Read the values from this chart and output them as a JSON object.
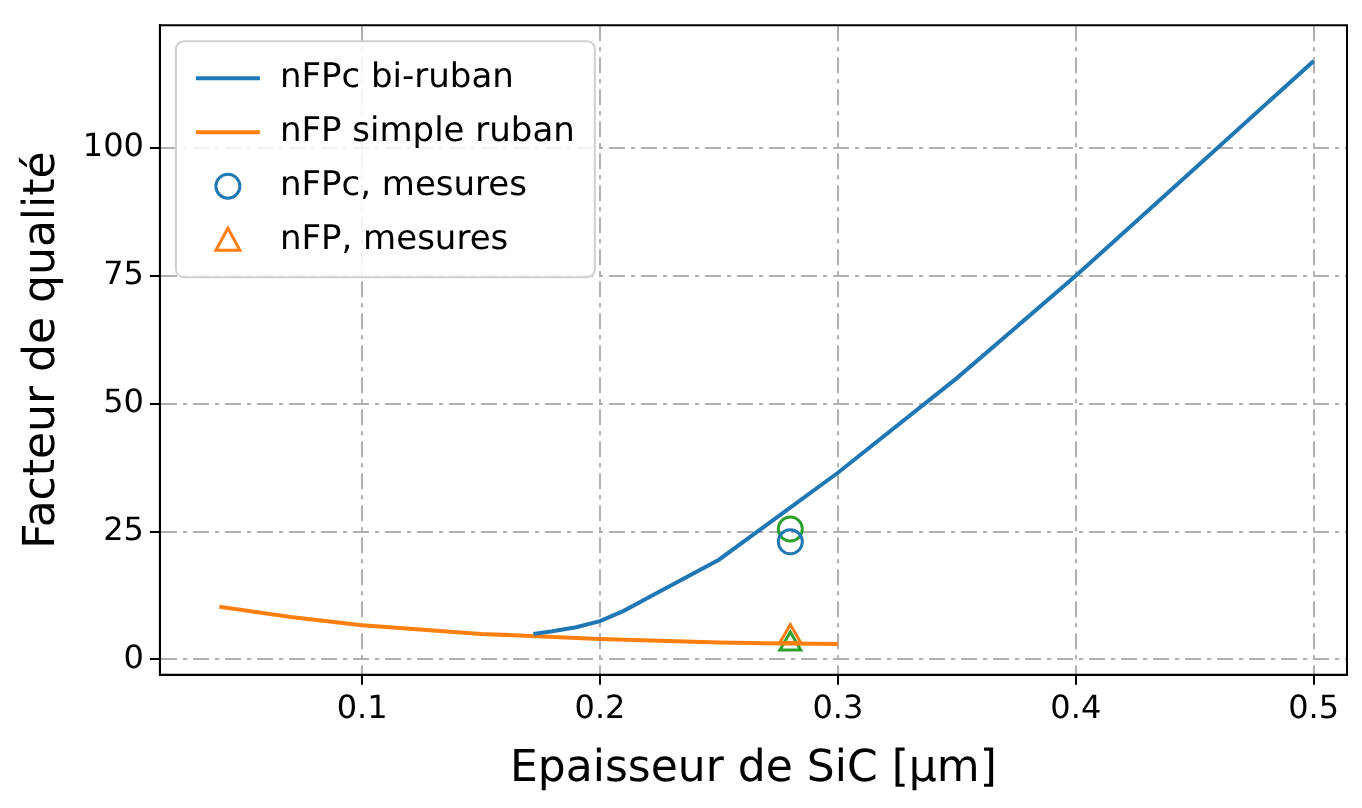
{
  "chart_data": {
    "type": "line",
    "xlabel": "Epaisseur de SiC [µm]",
    "ylabel": "Facteur de qualité",
    "xlim": [
      0.015,
      0.514
    ],
    "xticks": [
      0.1,
      0.2,
      0.3,
      0.4,
      0.5
    ],
    "ylim": [
      -3,
      124
    ],
    "yticks": [
      0,
      25,
      50,
      75,
      100
    ],
    "grid": true,
    "legend": "top left",
    "series": [
      {
        "name": "nFPc bi-ruban",
        "color": "#1f77b4",
        "marker": "none",
        "x": [
          0.172,
          0.18,
          0.19,
          0.2,
          0.21,
          0.22,
          0.25,
          0.3,
          0.35,
          0.4,
          0.45,
          0.5
        ],
        "values": [
          5,
          5.5,
          6.3,
          7.5,
          9.5,
          12,
          19.5,
          36.5,
          55,
          75,
          96,
          117
        ]
      },
      {
        "name": "nFP simple ruban",
        "color": "#ff7f0e",
        "marker": "none",
        "x": [
          0.04,
          0.07,
          0.1,
          0.15,
          0.2,
          0.25,
          0.3
        ],
        "values": [
          10.3,
          8.3,
          6.7,
          5,
          4,
          3.3,
          3
        ]
      },
      {
        "name": "nFPc, mesures",
        "type": "scatter",
        "color": "#1f77b4",
        "marker": "circle",
        "x": [
          0.28
        ],
        "values": [
          23
        ]
      },
      {
        "name": "nFP, mesures",
        "type": "scatter",
        "color": "#ff7f0e",
        "marker": "triangle",
        "x": [
          0.28
        ],
        "values": [
          4.5
        ]
      },
      {
        "type": "scatter",
        "color": "#2ca02c",
        "marker": "circle",
        "x": [
          0.28
        ],
        "values": [
          25.5
        ]
      },
      {
        "type": "scatter",
        "color": "#2ca02c",
        "marker": "triangle",
        "x": [
          0.28
        ],
        "values": [
          3
        ]
      }
    ]
  }
}
